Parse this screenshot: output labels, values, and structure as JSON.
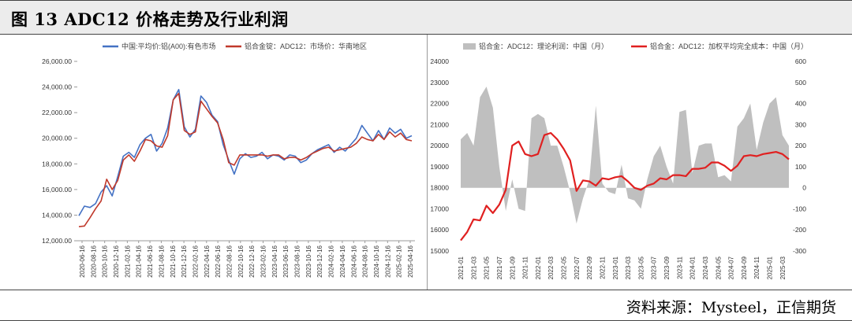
{
  "figure": {
    "title": "图 13 ADC12 价格走势及行业利润",
    "source": "资料来源：Mysteel，正信期货"
  },
  "chart_data": [
    {
      "type": "line",
      "x_ticks": [
        "2020-06-16",
        "2020-08-16",
        "2020-10-16",
        "2020-12-16",
        "2021-02-16",
        "2021-04-16",
        "2021-06-16",
        "2021-08-16",
        "2021-10-16",
        "2021-12-16",
        "2022-02-16",
        "2022-04-16",
        "2022-06-16",
        "2022-08-16",
        "2022-10-16",
        "2022-12-16",
        "2023-02-16",
        "2023-04-16",
        "2023-06-16",
        "2023-08-16",
        "2023-10-16",
        "2023-12-16",
        "2024-02-16",
        "2024-04-16",
        "2024-06-16",
        "2024-08-16",
        "2024-10-16",
        "2024-12-16",
        "2025-02-16",
        "2025-04-16"
      ],
      "y_ticks": [
        "12,000.00",
        "14,000.00",
        "16,000.00",
        "18,000.00",
        "20,000.00",
        "22,000.00",
        "24,000.00",
        "26,000.00"
      ],
      "ylim": [
        12000,
        26000
      ],
      "grid": false,
      "legend_position": "top",
      "series": [
        {
          "name": "中国:平均价:铝(A00):有色市场",
          "color": "#4472c4",
          "values": [
            13950,
            14700,
            14600,
            14900,
            15800,
            16300,
            15500,
            17000,
            18600,
            18900,
            18500,
            19500,
            20000,
            20300,
            19000,
            19600,
            20800,
            23000,
            23800,
            20900,
            20100,
            20700,
            23300,
            22800,
            21800,
            21300,
            19500,
            18300,
            17200,
            18400,
            18800,
            18500,
            18600,
            18900,
            18400,
            18700,
            18600,
            18300,
            18700,
            18600,
            18100,
            18300,
            18800,
            19100,
            19300,
            19500,
            18900,
            19300,
            19000,
            19500,
            20000,
            21000,
            20400,
            19800,
            20600,
            19900,
            20800,
            20400,
            20700,
            20000,
            20200
          ]
        },
        {
          "name": "铝合金锭：ADC12：市场价：华南地区",
          "color": "#c0392b",
          "values": [
            13100,
            13150,
            13800,
            14500,
            15100,
            16800,
            16000,
            16700,
            18300,
            18700,
            18200,
            19000,
            19900,
            19800,
            19400,
            19300,
            20200,
            23000,
            23500,
            20600,
            20300,
            20500,
            22900,
            22300,
            21700,
            21200,
            19900,
            18100,
            17900,
            18700,
            18700,
            18700,
            18700,
            18700,
            18600,
            18700,
            18700,
            18400,
            18500,
            18500,
            18300,
            18500,
            18800,
            19000,
            19200,
            19300,
            19000,
            19100,
            19200,
            19300,
            19600,
            20100,
            19900,
            19800,
            20300,
            19900,
            20500,
            20100,
            20400,
            19900,
            19800
          ]
        }
      ]
    },
    {
      "type": "area",
      "x_ticks": [
        "2021-01",
        "2021-03",
        "2021-05",
        "2021-07",
        "2021-09",
        "2021-11",
        "2022-01",
        "2022-03",
        "2022-05",
        "2022-07",
        "2022-09",
        "2022-11",
        "2023-01",
        "2023-03",
        "2023-05",
        "2023-07",
        "2023-09",
        "2023-11",
        "2024-01",
        "2024-03",
        "2024-05",
        "2024-07",
        "2024-09",
        "2024-11",
        "2025-01",
        "2025-03"
      ],
      "y_ticks": [
        "15000",
        "16000",
        "17000",
        "18000",
        "19000",
        "20000",
        "21000",
        "22000",
        "23000",
        "24000"
      ],
      "y2_ticks": [
        "-300",
        "-200",
        "-100",
        "0",
        "100",
        "200",
        "300",
        "400",
        "500",
        "600"
      ],
      "ylim": [
        15000,
        24000
      ],
      "y2lim": [
        -300,
        600
      ],
      "grid": false,
      "legend_position": "top",
      "categories": [
        "2021-01",
        "2021-02",
        "2021-03",
        "2021-04",
        "2021-05",
        "2021-06",
        "2021-07",
        "2021-08",
        "2021-09",
        "2021-10",
        "2021-11",
        "2021-12",
        "2022-01",
        "2022-02",
        "2022-03",
        "2022-04",
        "2022-05",
        "2022-06",
        "2022-07",
        "2022-08",
        "2022-09",
        "2022-10",
        "2022-11",
        "2022-12",
        "2023-01",
        "2023-02",
        "2023-03",
        "2023-04",
        "2023-05",
        "2023-06",
        "2023-07",
        "2023-08",
        "2023-09",
        "2023-10",
        "2023-11",
        "2023-12",
        "2024-01",
        "2024-02",
        "2024-03",
        "2024-04",
        "2024-05",
        "2024-06",
        "2024-07",
        "2024-08",
        "2024-09",
        "2024-10",
        "2024-11",
        "2024-12",
        "2025-01",
        "2025-02",
        "2025-03",
        "2025-04"
      ],
      "series": [
        {
          "name": "铝合金：ADC12：理论利润：中国（月）",
          "axis": "right",
          "color": "#bfbfbf",
          "kind": "area",
          "values": [
            230,
            260,
            200,
            430,
            480,
            380,
            100,
            -110,
            40,
            -100,
            -110,
            330,
            350,
            330,
            200,
            200,
            100,
            -20,
            -170,
            -50,
            40,
            390,
            20,
            -20,
            -30,
            110,
            -50,
            -60,
            -100,
            40,
            150,
            200,
            100,
            20,
            360,
            370,
            70,
            200,
            210,
            210,
            50,
            60,
            30,
            290,
            330,
            400,
            180,
            310,
            400,
            430,
            250,
            200
          ]
        },
        {
          "name": "铝合金：ADC12：加权平均完全成本：中国（月）",
          "axis": "left",
          "color": "#e02020",
          "kind": "line",
          "values": [
            15500,
            15900,
            16500,
            16450,
            17150,
            16800,
            17200,
            17900,
            20000,
            20200,
            19600,
            19500,
            19600,
            20500,
            20600,
            20300,
            19850,
            19300,
            17850,
            18350,
            18300,
            18100,
            18450,
            18400,
            18500,
            18550,
            18300,
            18000,
            17900,
            18100,
            18200,
            18450,
            18400,
            18600,
            18600,
            18550,
            18900,
            18900,
            18950,
            19200,
            19200,
            19050,
            18800,
            19050,
            19500,
            19550,
            19500,
            19600,
            19650,
            19700,
            19600,
            19350
          ]
        }
      ]
    }
  ]
}
